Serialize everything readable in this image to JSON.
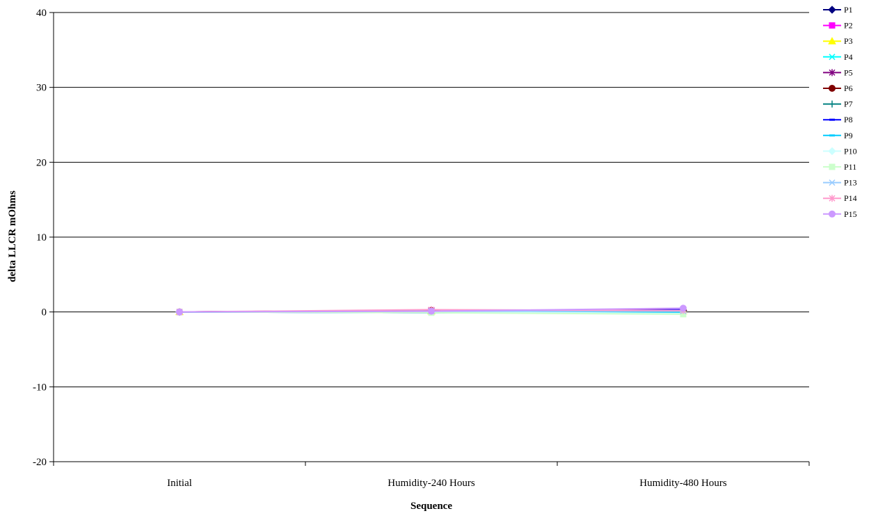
{
  "chart_data": {
    "type": "line",
    "title": "",
    "xlabel": "Sequence",
    "ylabel": "delta LLCR mOhms",
    "categories": [
      "Initial",
      "Humidity-240 Hours",
      "Humidity-480 Hours"
    ],
    "ylim": [
      -20,
      40
    ],
    "yticks": [
      -20,
      -10,
      0,
      10,
      20,
      30,
      40
    ],
    "grid": "horizontal major gridlines",
    "legend_position": "right",
    "series": [
      {
        "name": "P1",
        "color": "#000080",
        "marker": "diamond",
        "values": [
          0,
          0.1,
          0.2
        ]
      },
      {
        "name": "P2",
        "color": "#FF00FF",
        "marker": "square",
        "values": [
          0,
          0.2,
          0.3
        ]
      },
      {
        "name": "P3",
        "color": "#FFFF00",
        "marker": "triangle",
        "values": [
          0,
          0.1,
          0.1
        ]
      },
      {
        "name": "P4",
        "color": "#00FFFF",
        "marker": "x",
        "values": [
          0,
          0.0,
          0.1
        ]
      },
      {
        "name": "P5",
        "color": "#800080",
        "marker": "star",
        "values": [
          0,
          0.2,
          0.3
        ]
      },
      {
        "name": "P6",
        "color": "#800000",
        "marker": "circle",
        "values": [
          0,
          0.2,
          0.2
        ]
      },
      {
        "name": "P7",
        "color": "#008080",
        "marker": "plus",
        "values": [
          0,
          0.1,
          0.1
        ]
      },
      {
        "name": "P8",
        "color": "#0000FF",
        "marker": "dash",
        "values": [
          0,
          -0.1,
          0.3
        ]
      },
      {
        "name": "P9",
        "color": "#00CCFF",
        "marker": "dash",
        "values": [
          0,
          -0.1,
          -0.1
        ]
      },
      {
        "name": "P10",
        "color": "#CCFFFF",
        "marker": "diamond",
        "values": [
          0,
          0.0,
          -0.2
        ]
      },
      {
        "name": "P11",
        "color": "#CCFFCC",
        "marker": "square",
        "values": [
          0,
          -0.1,
          -0.3
        ]
      },
      {
        "name": "P13",
        "color": "#99CCFF",
        "marker": "x",
        "values": [
          0,
          0.1,
          0.1
        ]
      },
      {
        "name": "P14",
        "color": "#FF99CC",
        "marker": "star",
        "values": [
          0,
          0.3,
          0.2
        ]
      },
      {
        "name": "P15",
        "color": "#CC99FF",
        "marker": "circle",
        "values": [
          0,
          0.1,
          0.5
        ]
      }
    ]
  }
}
